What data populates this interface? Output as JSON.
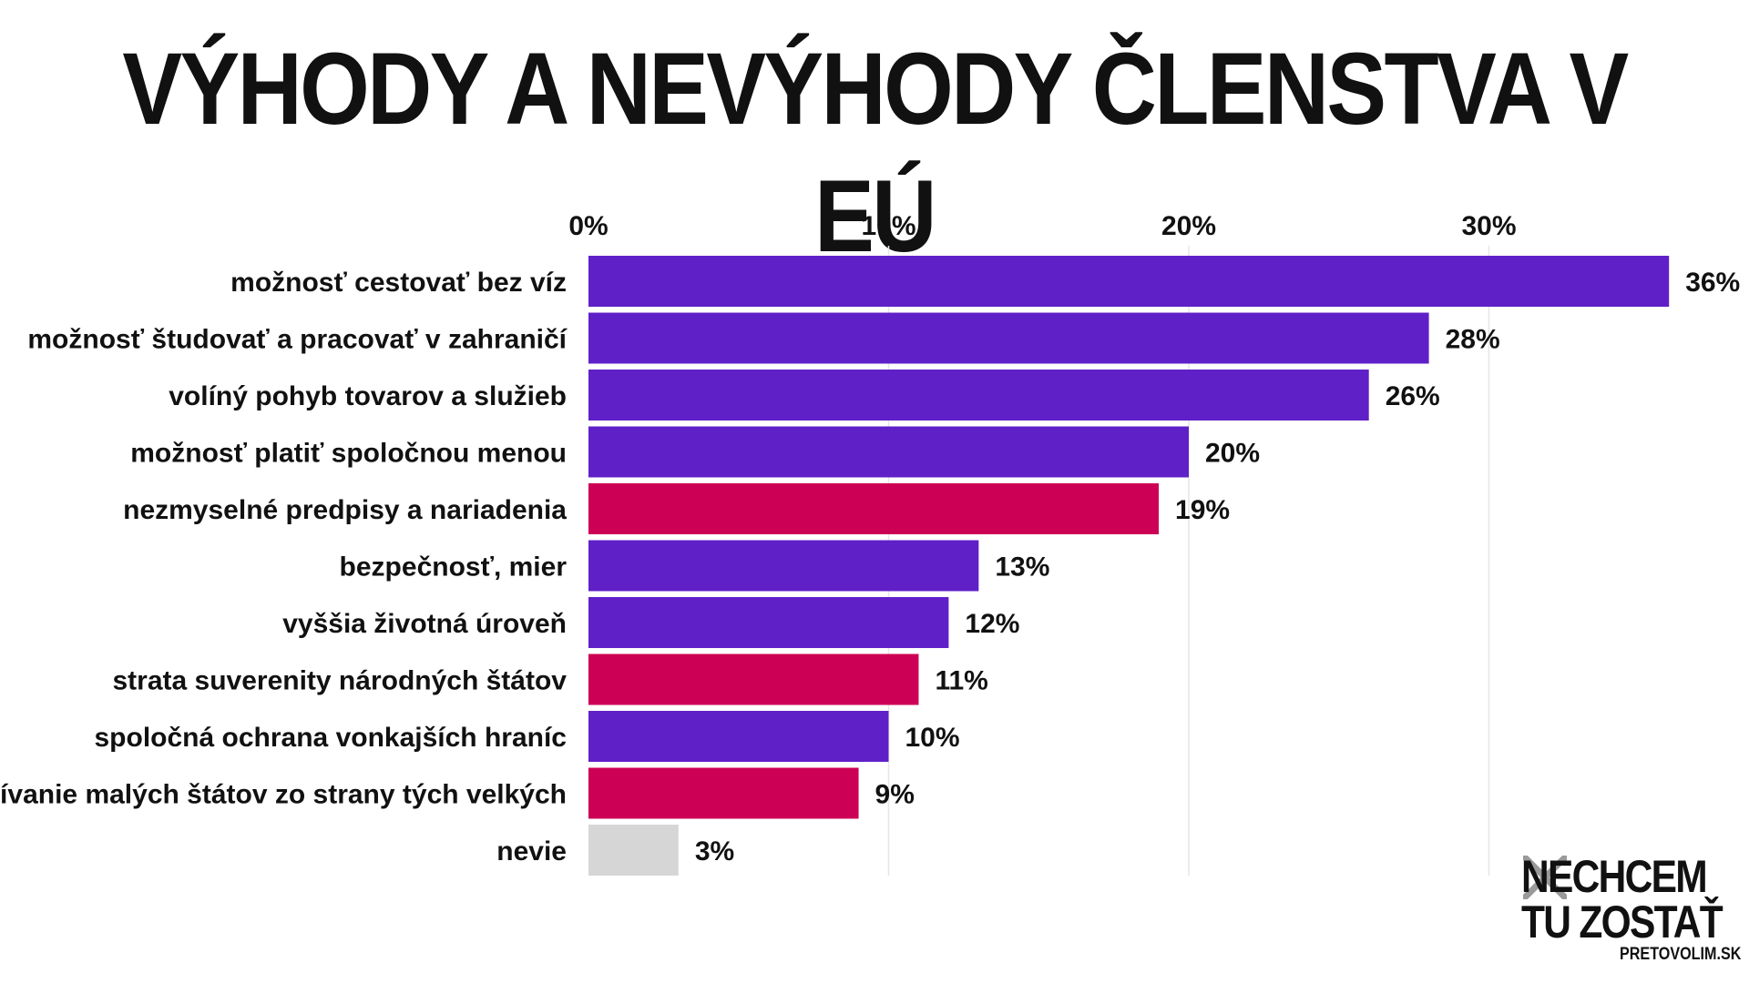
{
  "title": "VÝHODY A NEVÝHODY ČLENSTVA V EÚ",
  "colors": {
    "advantage": "#6020c8",
    "disadvantage": "#cc0055",
    "unknown": "#d6d6d6",
    "grid": "#e6e6e6"
  },
  "chart_data": {
    "type": "bar",
    "orientation": "horizontal",
    "xlim": [
      0,
      36
    ],
    "ticks": [
      0,
      10,
      20,
      30
    ],
    "tick_labels": [
      "0%",
      "10%",
      "20%",
      "30%"
    ],
    "axis_position": "top",
    "grid": true,
    "categories": [
      "možnosť cestovať bez víz",
      "možnosť študovať a pracovať v zahraničí",
      "volíný pohyb tovarov a služieb",
      "možnosť platiť spoločnou menou",
      "nezmyselné predpisy a nariadenia",
      "bezpečnosť, mier",
      "vyššia životná úroveň",
      "strata suverenity národných štátov",
      "spoločná ochrana vonkajších hraníc",
      "využívanie malých štátov zo strany tých velkých",
      "nevie"
    ],
    "values": [
      36,
      28,
      26,
      20,
      19,
      13,
      12,
      11,
      10,
      9,
      3
    ],
    "value_labels": [
      "36%",
      "28%",
      "26%",
      "20%",
      "19%",
      "13%",
      "12%",
      "11%",
      "10%",
      "9%",
      "3%"
    ],
    "groups": [
      "advantage",
      "advantage",
      "advantage",
      "advantage",
      "disadvantage",
      "advantage",
      "advantage",
      "disadvantage",
      "advantage",
      "disadvantage",
      "unknown"
    ]
  },
  "logo": {
    "line1": "NECHCEM",
    "line2": "TU ZOSTAŤ",
    "line3": "PRETOVOLIM.SK"
  }
}
